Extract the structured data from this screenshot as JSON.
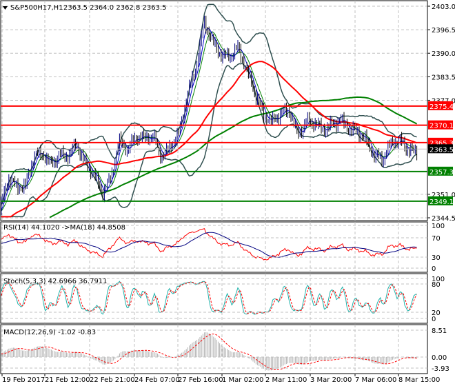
{
  "header": {
    "symbol": "S&P500H17,H1",
    "ohlc": "2363.5 2364.0 2362.8 2363.5"
  },
  "chart_data": [
    {
      "type": "line",
      "title": "S&P500H17,H1",
      "subtype": "ohlc-bars",
      "price_ticks": [
        "2403.0",
        "2396.5",
        "2390.0",
        "2383.5",
        "2377.0",
        "2351.0",
        "2344.5"
      ],
      "ylim": [
        2344.5,
        2403.0
      ],
      "x_labels": [
        "19 Feb 2017",
        "21 Feb 12:00",
        "22 Feb 21:00",
        "24 Feb 07:00",
        "27 Feb 16:00",
        "1 Mar 02:00",
        "2 Mar 11:00",
        "3 Mar 20:00",
        "7 Mar 06:00",
        "8 Mar 15:00"
      ],
      "close_path": [
        2347,
        2355,
        2352,
        2353,
        2362,
        2363,
        2360,
        2362,
        2361,
        2364,
        2359,
        2357,
        2352,
        2356,
        2366,
        2363,
        2366,
        2366,
        2367,
        2362,
        2365,
        2368,
        2378,
        2385,
        2398,
        2393,
        2390,
        2390,
        2392,
        2385,
        2378,
        2372,
        2371,
        2374,
        2375,
        2368,
        2371,
        2370,
        2368,
        2370,
        2372,
        2370,
        2369,
        2366,
        2361,
        2360,
        2365,
        2366,
        2364,
        2363.5
      ],
      "levels": [
        {
          "value": "2375.4",
          "color": "#ff0000"
        },
        {
          "value": "2370.1",
          "color": "#ff0000"
        },
        {
          "value": "2365.3",
          "color": "#ff0000"
        },
        {
          "value": "2357.3",
          "color": "#008000"
        },
        {
          "value": "2349.1",
          "color": "#008000"
        }
      ],
      "current_price": "2363.5",
      "indicators": [
        "Bollinger Bands",
        "Moving Average (red)",
        "Moving Average (green)"
      ]
    },
    {
      "type": "line",
      "title": "RSI(14) 44.1020  ->MA(18) 44.8508",
      "rsi": 44.102,
      "ma": 44.8508,
      "ticks": [
        "100",
        "70",
        "30",
        "0"
      ],
      "ylim": [
        0,
        100
      ]
    },
    {
      "type": "line",
      "title": "Stoch(5,3,3) 42.6966 36.7911",
      "main": 42.6966,
      "signal": 36.7911,
      "ticks": [
        "100",
        "80",
        "20",
        "0"
      ],
      "ylim": [
        0,
        100
      ]
    },
    {
      "type": "bar",
      "title": "MACD(12,26,9) -1.02 -0.83",
      "macd": -1.02,
      "signal": -0.83,
      "ticks": [
        "8.51",
        "0.00",
        "-3.93"
      ],
      "ylim": [
        -3.93,
        8.51
      ]
    }
  ]
}
